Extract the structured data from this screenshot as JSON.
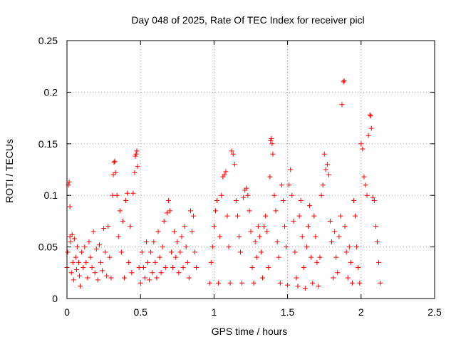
{
  "chart_data": {
    "type": "scatter",
    "title": "Day 048 of 2025, Rate Of TEC Index for receiver picl",
    "xlabel": "GPS time / hours",
    "ylabel": "ROTI / TECUs",
    "xlim": [
      0,
      2.5
    ],
    "ylim": [
      0,
      0.25
    ],
    "xticks": [
      0,
      0.5,
      1,
      1.5,
      2,
      2.5
    ],
    "xtick_labels": [
      "0",
      "0.5",
      "1",
      "1.5",
      "2",
      "2.5"
    ],
    "yticks": [
      0,
      0.05,
      0.1,
      0.15,
      0.2,
      0.25
    ],
    "ytick_labels": [
      "0",
      "0.05",
      "0.1",
      "0.15",
      "0.2",
      "0.25"
    ],
    "grid": true,
    "marker": "+",
    "color": "#ff0000",
    "points": [
      [
        0.0,
        0.03
      ],
      [
        0.005,
        0.045
      ],
      [
        0.01,
        0.11
      ],
      [
        0.015,
        0.113
      ],
      [
        0.02,
        0.089
      ],
      [
        0.02,
        0.06
      ],
      [
        0.025,
        0.055
      ],
      [
        0.03,
        0.025
      ],
      [
        0.035,
        0.062
      ],
      [
        0.04,
        0.035
      ],
      [
        0.045,
        0.018
      ],
      [
        0.05,
        0.058
      ],
      [
        0.06,
        0.04
      ],
      [
        0.065,
        0.028
      ],
      [
        0.07,
        0.05
      ],
      [
        0.08,
        0.035
      ],
      [
        0.085,
        0.022
      ],
      [
        0.09,
        0.012
      ],
      [
        0.1,
        0.045
      ],
      [
        0.11,
        0.03
      ],
      [
        0.12,
        0.05
      ],
      [
        0.13,
        0.035
      ],
      [
        0.14,
        0.02
      ],
      [
        0.15,
        0.055
      ],
      [
        0.16,
        0.04
      ],
      [
        0.17,
        0.03
      ],
      [
        0.18,
        0.065
      ],
      [
        0.19,
        0.025
      ],
      [
        0.2,
        0.048
      ],
      [
        0.21,
        0.018
      ],
      [
        0.22,
        0.052
      ],
      [
        0.23,
        0.035
      ],
      [
        0.24,
        0.027
      ],
      [
        0.25,
        0.068
      ],
      [
        0.26,
        0.045
      ],
      [
        0.27,
        0.022
      ],
      [
        0.28,
        0.07
      ],
      [
        0.29,
        0.04
      ],
      [
        0.3,
        0.02
      ],
      [
        0.31,
        0.1
      ],
      [
        0.315,
        0.12
      ],
      [
        0.32,
        0.132
      ],
      [
        0.325,
        0.133
      ],
      [
        0.33,
        0.122
      ],
      [
        0.34,
        0.1
      ],
      [
        0.35,
        0.06
      ],
      [
        0.36,
        0.085
      ],
      [
        0.37,
        0.045
      ],
      [
        0.38,
        0.075
      ],
      [
        0.39,
        0.02
      ],
      [
        0.4,
        0.095
      ],
      [
        0.41,
        0.102
      ],
      [
        0.42,
        0.035
      ],
      [
        0.43,
        0.07
      ],
      [
        0.44,
        0.025
      ],
      [
        0.45,
        0.102
      ],
      [
        0.46,
        0.122
      ],
      [
        0.465,
        0.138
      ],
      [
        0.47,
        0.14
      ],
      [
        0.475,
        0.143
      ],
      [
        0.48,
        0.128
      ],
      [
        0.49,
        0.03
      ],
      [
        0.5,
        0.015
      ],
      [
        0.51,
        0.045
      ],
      [
        0.52,
        0.03
      ],
      [
        0.53,
        0.02
      ],
      [
        0.54,
        0.055
      ],
      [
        0.55,
        0.035
      ],
      [
        0.56,
        0.018
      ],
      [
        0.57,
        0.045
      ],
      [
        0.58,
        0.025
      ],
      [
        0.59,
        0.055
      ],
      [
        0.6,
        0.035
      ],
      [
        0.61,
        0.02
      ],
      [
        0.62,
        0.065
      ],
      [
        0.63,
        0.04
      ],
      [
        0.64,
        0.025
      ],
      [
        0.65,
        0.05
      ],
      [
        0.66,
        0.075
      ],
      [
        0.67,
        0.03
      ],
      [
        0.68,
        0.083
      ],
      [
        0.69,
        0.095
      ],
      [
        0.7,
        0.085
      ],
      [
        0.71,
        0.045
      ],
      [
        0.72,
        0.03
      ],
      [
        0.73,
        0.065
      ],
      [
        0.74,
        0.04
      ],
      [
        0.75,
        0.055
      ],
      [
        0.76,
        0.025
      ],
      [
        0.77,
        0.045
      ],
      [
        0.78,
        0.06
      ],
      [
        0.79,
        0.03
      ],
      [
        0.8,
        0.07
      ],
      [
        0.81,
        0.05
      ],
      [
        0.82,
        0.035
      ],
      [
        0.83,
        0.02
      ],
      [
        0.84,
        0.085
      ],
      [
        0.85,
        0.065
      ],
      [
        0.86,
        0.08
      ],
      [
        0.87,
        0.045
      ],
      [
        0.88,
        0.03
      ],
      [
        0.97,
        0.015
      ],
      [
        0.98,
        0.035
      ],
      [
        0.99,
        0.05
      ],
      [
        1.0,
        0.07
      ],
      [
        1.01,
        0.085
      ],
      [
        1.02,
        0.095
      ],
      [
        1.03,
        0.015
      ],
      [
        1.04,
        0.06
      ],
      [
        1.05,
        0.1
      ],
      [
        1.06,
        0.118
      ],
      [
        1.07,
        0.12
      ],
      [
        1.08,
        0.123
      ],
      [
        1.09,
        0.08
      ],
      [
        1.1,
        0.05
      ],
      [
        1.11,
        0.015
      ],
      [
        1.12,
        0.143
      ],
      [
        1.13,
        0.14
      ],
      [
        1.14,
        0.13
      ],
      [
        1.15,
        0.095
      ],
      [
        1.16,
        0.08
      ],
      [
        1.17,
        0.06
      ],
      [
        1.18,
        0.045
      ],
      [
        1.19,
        0.015
      ],
      [
        1.2,
        0.098
      ],
      [
        1.21,
        0.105
      ],
      [
        1.22,
        0.107
      ],
      [
        1.23,
        0.1
      ],
      [
        1.24,
        0.085
      ],
      [
        1.25,
        0.065
      ],
      [
        1.26,
        0.03
      ],
      [
        1.27,
        0.015
      ],
      [
        1.28,
        0.055
      ],
      [
        1.29,
        0.04
      ],
      [
        1.3,
        0.07
      ],
      [
        1.31,
        0.06
      ],
      [
        1.32,
        0.045
      ],
      [
        1.33,
        0.02
      ],
      [
        1.34,
        0.07
      ],
      [
        1.35,
        0.08
      ],
      [
        1.36,
        0.065
      ],
      [
        1.37,
        0.03
      ],
      [
        1.38,
        0.118
      ],
      [
        1.385,
        0.153
      ],
      [
        1.39,
        0.155
      ],
      [
        1.395,
        0.15
      ],
      [
        1.4,
        0.14
      ],
      [
        1.41,
        0.1
      ],
      [
        1.42,
        0.085
      ],
      [
        1.43,
        0.055
      ],
      [
        1.44,
        0.04
      ],
      [
        1.45,
        0.015
      ],
      [
        1.46,
        0.11
      ],
      [
        1.47,
        0.095
      ],
      [
        1.48,
        0.07
      ],
      [
        1.49,
        0.05
      ],
      [
        1.5,
        0.013
      ],
      [
        1.51,
        0.11
      ],
      [
        1.52,
        0.125
      ],
      [
        1.53,
        0.1
      ],
      [
        1.54,
        0.075
      ],
      [
        1.55,
        0.045
      ],
      [
        1.56,
        0.02
      ],
      [
        1.57,
        0.012
      ],
      [
        1.58,
        0.08
      ],
      [
        1.59,
        0.095
      ],
      [
        1.6,
        0.06
      ],
      [
        1.61,
        0.03
      ],
      [
        1.62,
        0.01
      ],
      [
        1.63,
        0.05
      ],
      [
        1.64,
        0.07
      ],
      [
        1.65,
        0.09
      ],
      [
        1.66,
        0.04
      ],
      [
        1.67,
        0.015
      ],
      [
        1.68,
        0.08
      ],
      [
        1.69,
        0.06
      ],
      [
        1.7,
        0.035
      ],
      [
        1.71,
        0.012
      ],
      [
        1.72,
        0.04
      ],
      [
        1.73,
        0.1
      ],
      [
        1.74,
        0.11
      ],
      [
        1.75,
        0.14
      ],
      [
        1.76,
        0.125
      ],
      [
        1.77,
        0.13
      ],
      [
        1.78,
        0.12
      ],
      [
        1.79,
        0.075
      ],
      [
        1.8,
        0.055
      ],
      [
        1.81,
        0.02
      ],
      [
        1.82,
        0.065
      ],
      [
        1.83,
        0.04
      ],
      [
        1.84,
        0.025
      ],
      [
        1.85,
        0.06
      ],
      [
        1.86,
        0.08
      ],
      [
        1.87,
        0.188
      ],
      [
        1.88,
        0.21
      ],
      [
        1.885,
        0.211
      ],
      [
        1.89,
        0.07
      ],
      [
        1.9,
        0.045
      ],
      [
        1.91,
        0.02
      ],
      [
        1.92,
        0.05
      ],
      [
        1.93,
        0.035
      ],
      [
        1.94,
        0.015
      ],
      [
        1.95,
        0.095
      ],
      [
        1.96,
        0.08
      ],
      [
        1.97,
        0.05
      ],
      [
        1.98,
        0.03
      ],
      [
        1.99,
        0.015
      ],
      [
        2.0,
        0.15
      ],
      [
        2.01,
        0.145
      ],
      [
        2.02,
        0.118
      ],
      [
        2.03,
        0.11
      ],
      [
        2.04,
        0.1
      ],
      [
        2.05,
        0.158
      ],
      [
        2.06,
        0.178
      ],
      [
        2.065,
        0.177
      ],
      [
        2.07,
        0.165
      ],
      [
        2.08,
        0.098
      ],
      [
        2.09,
        0.095
      ],
      [
        2.1,
        0.07
      ],
      [
        2.11,
        0.055
      ],
      [
        2.12,
        0.035
      ],
      [
        2.13,
        0.015
      ]
    ]
  }
}
